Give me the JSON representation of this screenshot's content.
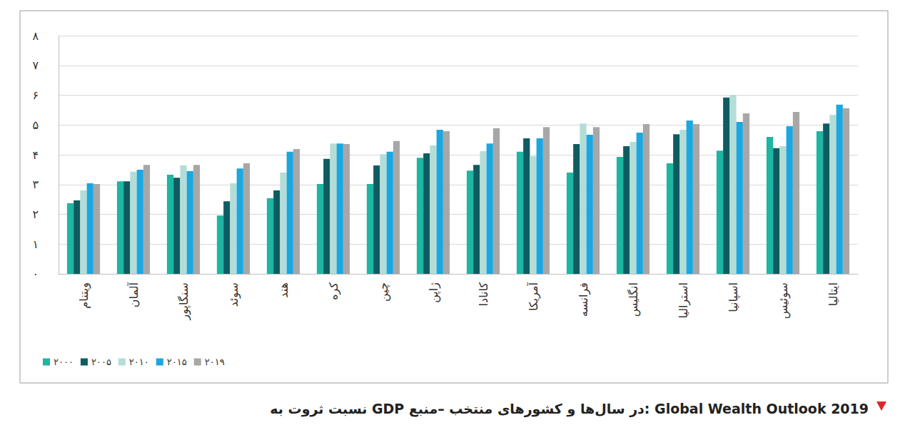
{
  "chart_data": {
    "type": "bar",
    "title": "نسبت ثروت به GDP در سال‌ها و کشورهای منتخب –منبع: Global Wealth Outlook 2019",
    "categories": [
      "ویتنام",
      "آلمان",
      "سنگاپور",
      "سوئد",
      "هند",
      "کره",
      "چین",
      "ژاپن",
      "کانادا",
      "آمریکا",
      "فرانسه",
      "انگلیس",
      "استرالیا",
      "اسپانیا",
      "سوئیس",
      "ایتالیا"
    ],
    "series": [
      {
        "name": "۲۰۰۰",
        "color": "#1fb5a3",
        "values": [
          2.37,
          3.11,
          3.33,
          1.96,
          2.54,
          3.02,
          3.02,
          3.9,
          3.47,
          4.1,
          3.4,
          3.93,
          3.71,
          4.14,
          4.6,
          4.79
        ]
      },
      {
        "name": "۲۰۰۵",
        "color": "#0e5c62",
        "values": [
          2.47,
          3.11,
          3.23,
          2.44,
          2.8,
          3.86,
          3.64,
          4.05,
          3.66,
          4.55,
          4.36,
          4.29,
          4.69,
          5.92,
          4.22,
          5.05
        ]
      },
      {
        "name": "۲۰۱۰",
        "color": "#b4ddd7",
        "values": [
          2.8,
          3.43,
          3.64,
          3.04,
          3.4,
          4.38,
          4.02,
          4.31,
          4.12,
          3.95,
          5.05,
          4.43,
          4.84,
          6.01,
          4.29,
          5.34
        ]
      },
      {
        "name": "۲۰۱۵",
        "color": "#1ba7df",
        "values": [
          3.04,
          3.5,
          3.45,
          3.54,
          4.1,
          4.38,
          4.1,
          4.84,
          4.38,
          4.55,
          4.67,
          4.74,
          5.15,
          5.1,
          4.96,
          5.68
        ]
      },
      {
        "name": "۲۰۱۹",
        "color": "#a7a7a7",
        "values": [
          3.02,
          3.66,
          3.66,
          3.71,
          4.19,
          4.36,
          4.46,
          4.79,
          4.89,
          4.93,
          4.93,
          5.03,
          5.03,
          5.39,
          5.44,
          5.56
        ]
      }
    ],
    "ylim": [
      0,
      8
    ],
    "yticks": [
      {
        "value": 0,
        "label": "۰"
      },
      {
        "value": 1,
        "label": "۱"
      },
      {
        "value": 2,
        "label": "۲"
      },
      {
        "value": 3,
        "label": "۳"
      },
      {
        "value": 4,
        "label": "۴"
      },
      {
        "value": 5,
        "label": "۵"
      },
      {
        "value": 6,
        "label": "۶"
      },
      {
        "value": 7,
        "label": "۷"
      },
      {
        "value": 8,
        "label": "۸"
      }
    ],
    "grid": true,
    "legend": "bottom-left"
  }
}
